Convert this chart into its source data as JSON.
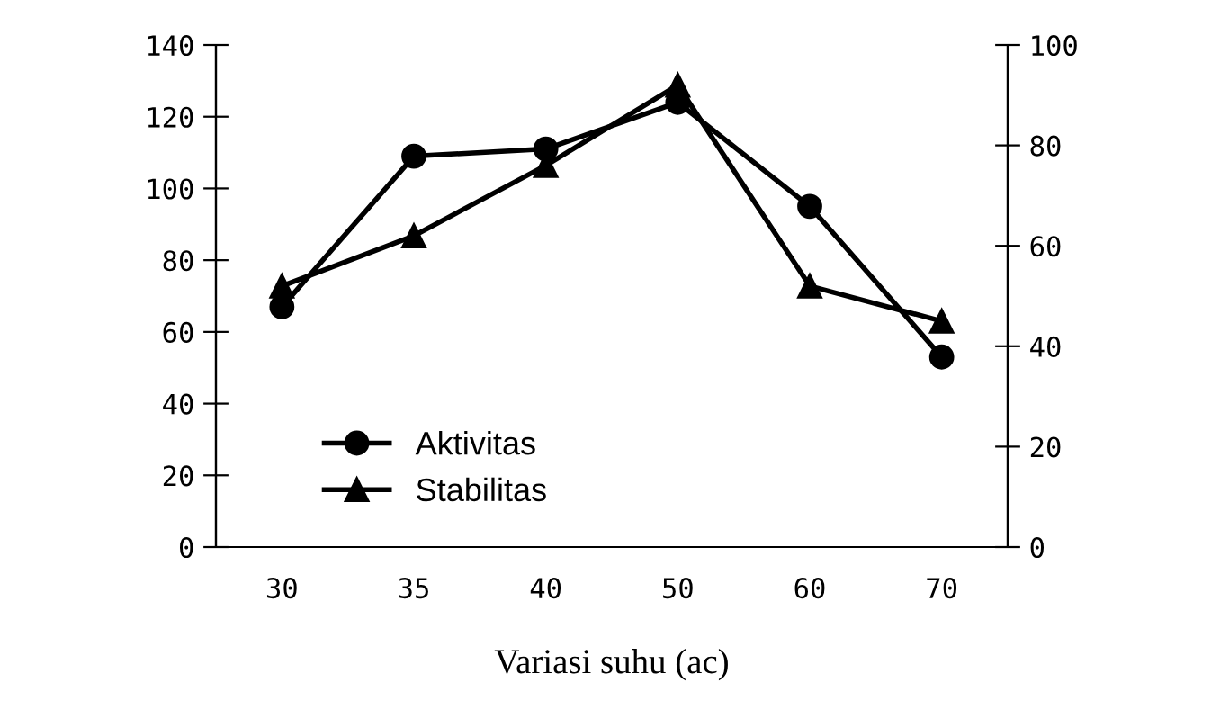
{
  "chart_data": {
    "type": "line",
    "xlabel": "Variasi suhu (ac)",
    "categories": [
      "30",
      "35",
      "40",
      "50",
      "60",
      "70"
    ],
    "series": [
      {
        "name": "Aktivitas",
        "color": "#000000",
        "marker": "circle",
        "values": [
          67,
          109,
          111,
          124,
          95,
          53
        ]
      },
      {
        "name": "Stabilitas",
        "color": "#000000",
        "marker": "triangle",
        "axis": "y2",
        "values": [
          52,
          62,
          76,
          92,
          52,
          45
        ]
      }
    ],
    "ylim": [
      0,
      140
    ],
    "yticks": [
      0,
      20,
      40,
      60,
      80,
      100,
      120,
      140
    ],
    "y2lim": [
      0,
      100
    ],
    "y2ticks": [
      0,
      20,
      40,
      60,
      80,
      100
    ],
    "grid": false,
    "legend": "bottom left",
    "line_style": "solid"
  }
}
